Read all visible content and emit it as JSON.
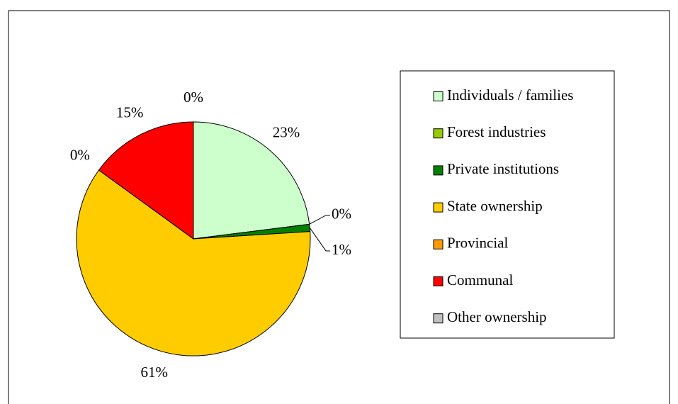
{
  "chart_data": {
    "type": "pie",
    "categories": [
      "Individuals / families",
      "Forest industries",
      "Private institutions",
      "State ownership",
      "Provincial",
      "Communal",
      "Other ownership"
    ],
    "values": [
      23,
      0,
      1,
      61,
      0,
      15,
      0
    ],
    "value_labels": [
      "23%",
      "0%",
      "1%",
      "61%",
      "0%",
      "15%",
      "0%"
    ],
    "colors": [
      "#ccffcc",
      "#99cc00",
      "#008000",
      "#ffcc00",
      "#ff9900",
      "#ff0000",
      "#c0c0c0"
    ],
    "legend": "right"
  }
}
